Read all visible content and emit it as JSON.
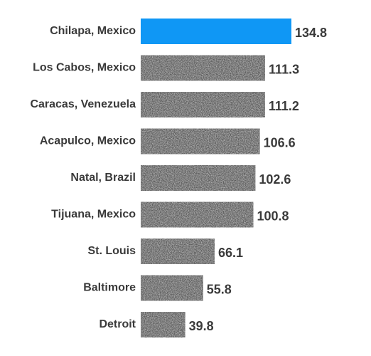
{
  "chart_data": {
    "type": "bar",
    "orientation": "horizontal",
    "categories": [
      "Chilapa, Mexico",
      "Los Cabos, Mexico",
      "Caracas, Venezuela",
      "Acapulco, Mexico",
      "Natal, Brazil",
      "Tijuana, Mexico",
      "St. Louis",
      "Baltimore",
      "Detroit"
    ],
    "values": [
      134.8,
      111.3,
      111.2,
      106.6,
      102.6,
      100.8,
      66.1,
      55.8,
      39.8
    ],
    "value_labels": [
      "134.8",
      "111.3",
      "111.2",
      "106.6",
      "102.6",
      "100.8",
      "66.1",
      "55.8",
      "39.8"
    ],
    "highlight_index": 0,
    "colors": {
      "highlight": "#0f97f5",
      "bar": "#5a5a5a",
      "bar_texture": "#7a7a7a",
      "text": "#3a3a3a"
    },
    "xlim": [
      0,
      134.8
    ],
    "grid": false,
    "legend": "none"
  }
}
